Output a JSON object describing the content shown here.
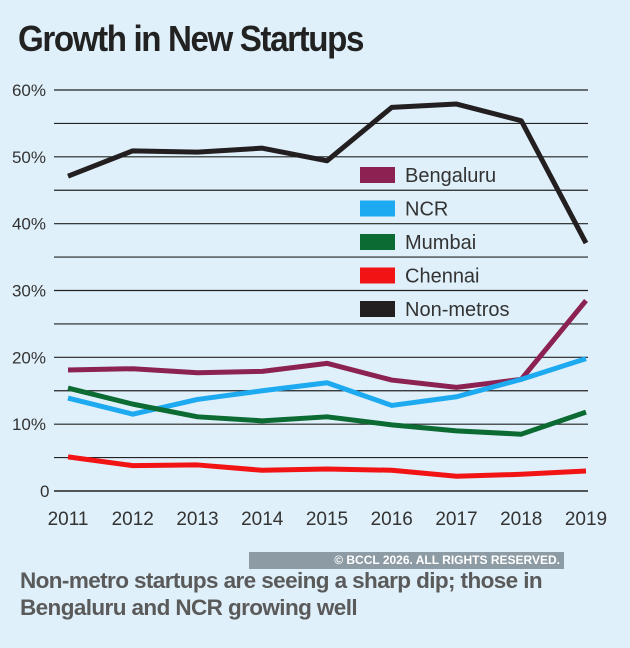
{
  "title": "Growth in New Startups",
  "caption": "Non-metro startups are seeing a sharp dip; those in Bengaluru and NCR growing well",
  "copyright": "© BCCL 2026. ALL RIGHTS RESERVED.",
  "chart_data": {
    "type": "line",
    "title": "Growth in New Startups",
    "x": [
      "2011",
      "2012",
      "2013",
      "2014",
      "2015",
      "2016",
      "2017",
      "2018",
      "2019"
    ],
    "yticks": [
      "0",
      "10%",
      "20%",
      "30%",
      "40%",
      "50%",
      "60%"
    ],
    "ylim": [
      0,
      60
    ],
    "grid": true,
    "legend_position": "center-right",
    "series": [
      {
        "name": "Bengaluru",
        "color": "#8b2252",
        "values": [
          18.1,
          18.3,
          17.7,
          17.9,
          19.1,
          16.6,
          15.5,
          16.7,
          28.5
        ]
      },
      {
        "name": "NCR",
        "color": "#1eaaf0",
        "values": [
          13.9,
          11.5,
          13.7,
          15.0,
          16.2,
          12.8,
          14.1,
          16.7,
          19.8
        ]
      },
      {
        "name": "Mumbai",
        "color": "#0b6b32",
        "values": [
          15.4,
          13.0,
          11.1,
          10.5,
          11.1,
          9.9,
          9.0,
          8.5,
          11.8
        ]
      },
      {
        "name": "Chennai",
        "color": "#f21414",
        "values": [
          5.1,
          3.8,
          3.9,
          3.1,
          3.3,
          3.1,
          2.2,
          2.5,
          3.0
        ]
      },
      {
        "name": "Non-metros",
        "color": "#231f20",
        "values": [
          47.1,
          50.9,
          50.7,
          51.3,
          49.4,
          57.4,
          57.9,
          55.4,
          37.1
        ]
      }
    ]
  }
}
